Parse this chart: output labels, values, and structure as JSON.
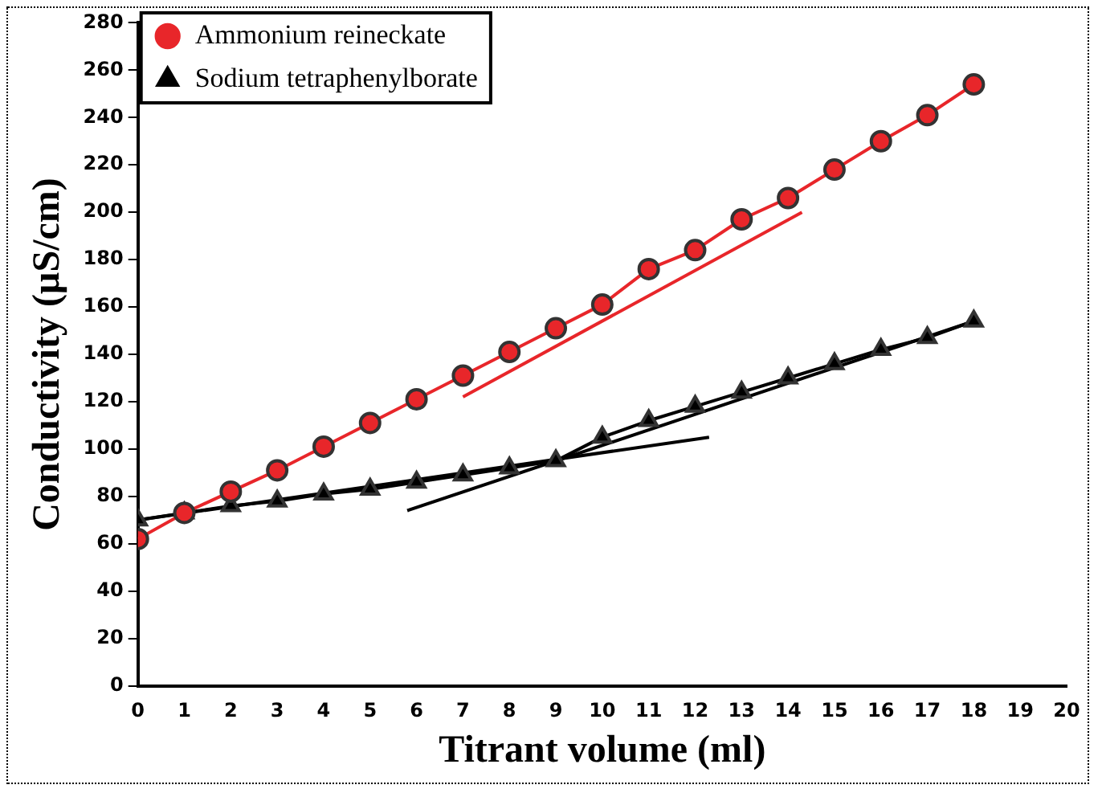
{
  "chart_data": {
    "type": "line",
    "xlabel": "Titrant volume (ml)",
    "ylabel": "Conductivity (µS/cm)",
    "x": [
      0,
      1,
      2,
      3,
      4,
      5,
      6,
      7,
      8,
      9,
      10,
      11,
      12,
      13,
      14,
      15,
      16,
      17,
      18
    ],
    "series": [
      {
        "name": "Ammonium reineckate",
        "color": "#e8262a",
        "marker": "circle",
        "values": [
          62,
          73,
          82,
          91,
          101,
          111,
          121,
          131,
          141,
          151,
          161,
          176,
          184,
          197,
          206,
          218,
          230,
          241,
          254
        ]
      },
      {
        "name": "Sodium tetraphenylborate",
        "color": "#000000",
        "marker": "triangle",
        "values": [
          70,
          73,
          76,
          78,
          81,
          83,
          86,
          89,
          92,
          95,
          105,
          112,
          118,
          124,
          130,
          136,
          142,
          147,
          154
        ]
      },
      {
        "color": "#e8262a",
        "marker": "none",
        "x": [
          7,
          14.3
        ],
        "values": [
          122,
          200
        ]
      },
      {
        "color": "#000000",
        "marker": "none",
        "x": [
          0,
          12.3
        ],
        "values": [
          70,
          105
        ]
      },
      {
        "color": "#000000",
        "marker": "none",
        "x": [
          5.8,
          18
        ],
        "values": [
          74,
          154
        ]
      }
    ],
    "xlim": [
      0,
      20
    ],
    "xticks": [
      0,
      1,
      2,
      3,
      4,
      5,
      6,
      7,
      8,
      9,
      10,
      11,
      12,
      13,
      14,
      15,
      16,
      17,
      18,
      19,
      20
    ],
    "ylim": [
      0,
      280
    ],
    "yticks": [
      0,
      20,
      40,
      60,
      80,
      100,
      120,
      140,
      160,
      180,
      200,
      220,
      240,
      260,
      280
    ],
    "grid": false,
    "legend": "top left"
  }
}
